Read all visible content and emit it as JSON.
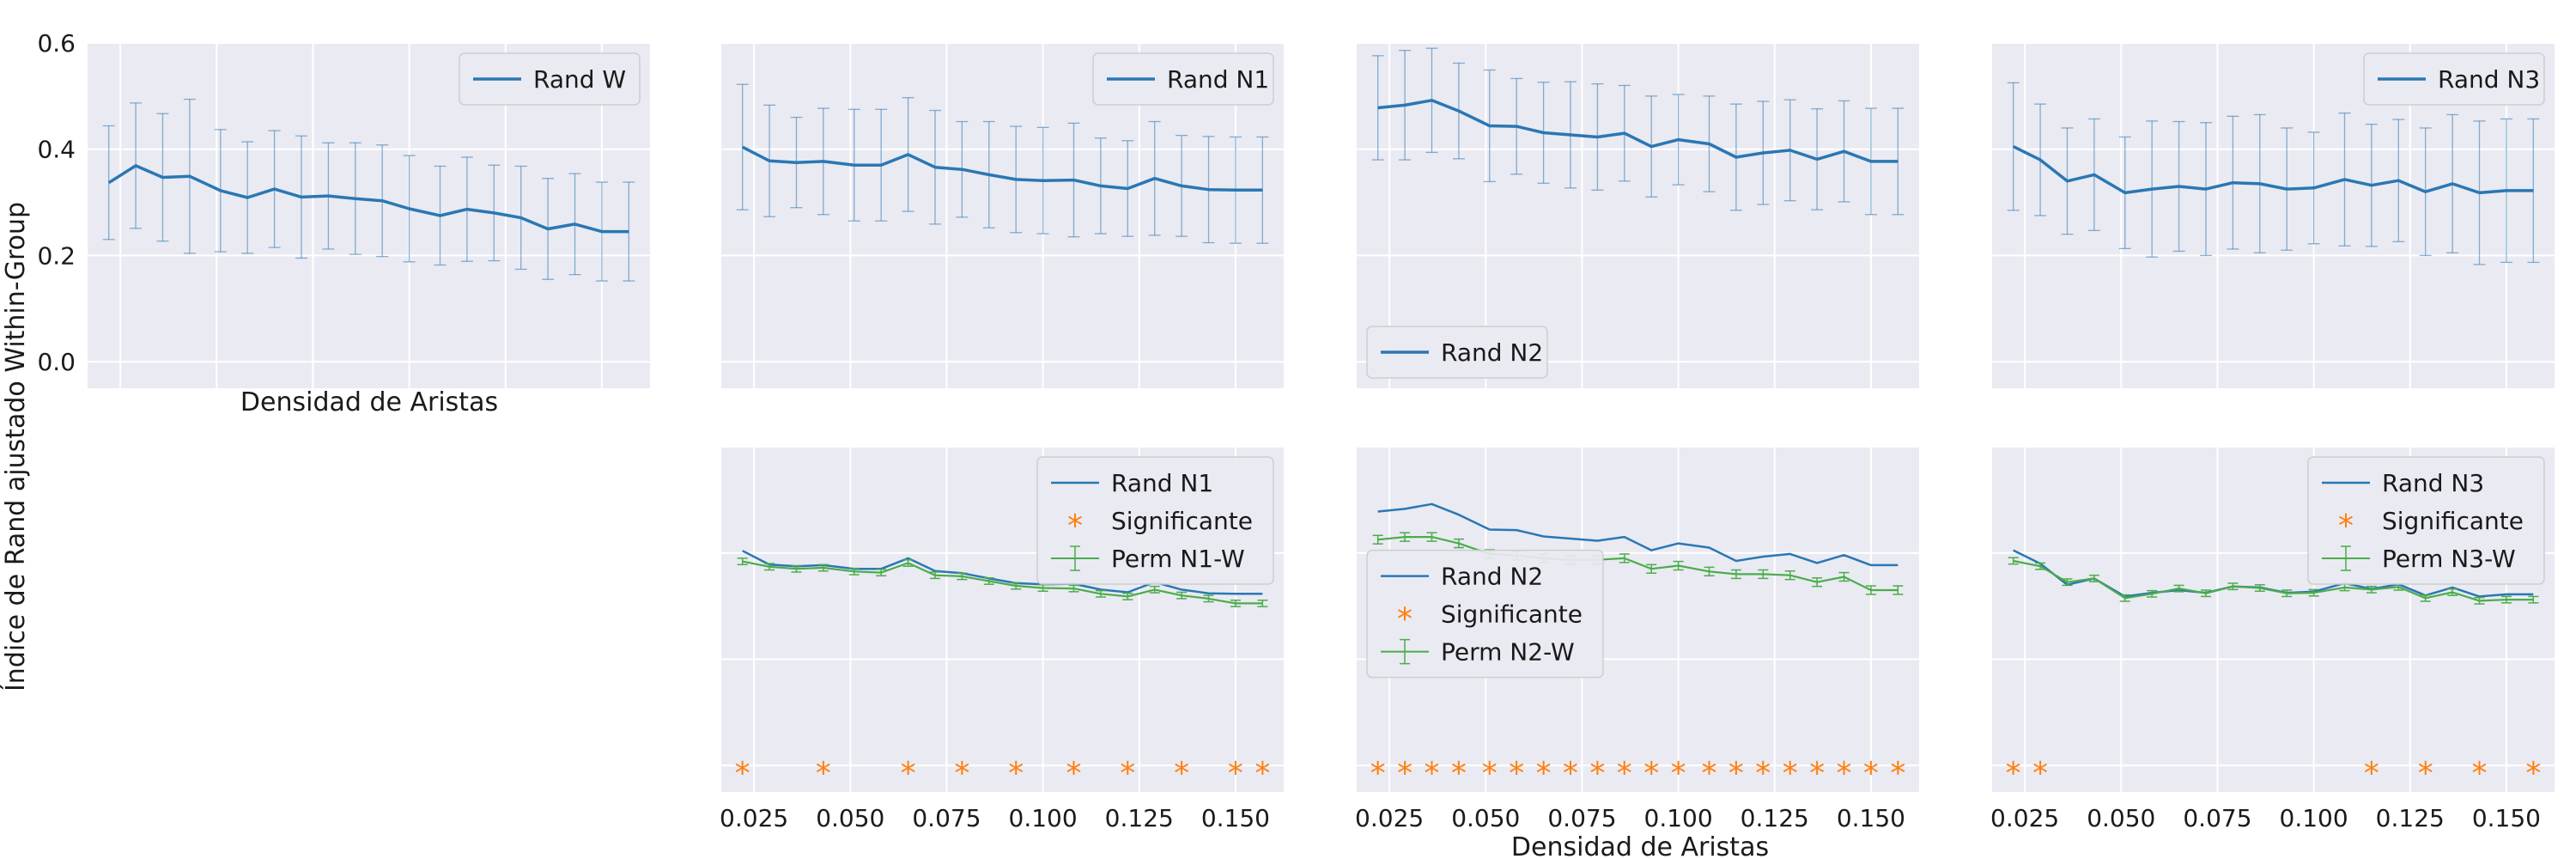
{
  "figure": {
    "ylabel": "Índice de Rand ajustado Within-Group",
    "xlabel_top": "Densidad de Aristas",
    "xlabel_bottom": "Densidad de Aristas"
  },
  "colors": {
    "blue": "#2a77b4",
    "orange": "#ff7f0e",
    "green": "#4bac4b",
    "panel_bg": "#eaeaf2",
    "grid": "#ffffff"
  },
  "chart_data": [
    {
      "id": "top-w",
      "type": "line",
      "row": "top",
      "col": 0,
      "legend": "top-right",
      "show_yticks": true,
      "ylim": [
        -0.05,
        0.6
      ],
      "yticks": [
        0.0,
        0.2,
        0.4,
        0.6
      ],
      "x": [
        0.022,
        0.029,
        0.036,
        0.043,
        0.051,
        0.058,
        0.065,
        0.072,
        0.079,
        0.086,
        0.093,
        0.1,
        0.108,
        0.115,
        0.122,
        0.129,
        0.136,
        0.143,
        0.15,
        0.157
      ],
      "series": [
        {
          "name": "Rand W",
          "color": "blue",
          "values": [
            0.337,
            0.369,
            0.347,
            0.349,
            0.322,
            0.309,
            0.325,
            0.31,
            0.312,
            0.307,
            0.303,
            0.288,
            0.275,
            0.287,
            0.28,
            0.271,
            0.25,
            0.259,
            0.245,
            0.245
          ],
          "err": [
            0.107,
            0.118,
            0.12,
            0.145,
            0.115,
            0.105,
            0.11,
            0.115,
            0.1,
            0.105,
            0.105,
            0.1,
            0.093,
            0.098,
            0.09,
            0.097,
            0.095,
            0.095,
            0.093,
            0.093
          ]
        }
      ]
    },
    {
      "id": "top-n1",
      "type": "line",
      "row": "top",
      "col": 1,
      "legend": "top-right",
      "show_yticks": false,
      "ylim": [
        -0.05,
        0.6
      ],
      "yticks": [
        0.0,
        0.2,
        0.4,
        0.6
      ],
      "x": [
        0.022,
        0.029,
        0.036,
        0.043,
        0.051,
        0.058,
        0.065,
        0.072,
        0.079,
        0.086,
        0.093,
        0.1,
        0.108,
        0.115,
        0.122,
        0.129,
        0.136,
        0.143,
        0.15,
        0.157
      ],
      "series": [
        {
          "name": "Rand N1",
          "color": "blue",
          "values": [
            0.404,
            0.378,
            0.375,
            0.377,
            0.37,
            0.37,
            0.39,
            0.366,
            0.362,
            0.352,
            0.343,
            0.341,
            0.342,
            0.331,
            0.326,
            0.345,
            0.331,
            0.324,
            0.323,
            0.323
          ],
          "err": [
            0.118,
            0.105,
            0.085,
            0.1,
            0.105,
            0.105,
            0.107,
            0.107,
            0.09,
            0.1,
            0.1,
            0.1,
            0.107,
            0.09,
            0.09,
            0.107,
            0.095,
            0.1,
            0.1,
            0.1
          ]
        }
      ]
    },
    {
      "id": "top-n2",
      "type": "line",
      "row": "top",
      "col": 2,
      "legend": "bottom-left",
      "show_yticks": false,
      "ylim": [
        -0.05,
        0.6
      ],
      "yticks": [
        0.0,
        0.2,
        0.4,
        0.6
      ],
      "x": [
        0.022,
        0.029,
        0.036,
        0.043,
        0.051,
        0.058,
        0.065,
        0.072,
        0.079,
        0.086,
        0.093,
        0.1,
        0.108,
        0.115,
        0.122,
        0.129,
        0.136,
        0.143,
        0.15,
        0.157
      ],
      "series": [
        {
          "name": "Rand N2",
          "color": "blue",
          "values": [
            0.478,
            0.483,
            0.492,
            0.472,
            0.444,
            0.443,
            0.431,
            0.427,
            0.423,
            0.43,
            0.405,
            0.418,
            0.41,
            0.385,
            0.393,
            0.398,
            0.381,
            0.396,
            0.377,
            0.377
          ],
          "err": [
            0.098,
            0.103,
            0.098,
            0.09,
            0.105,
            0.09,
            0.095,
            0.1,
            0.1,
            0.09,
            0.095,
            0.085,
            0.09,
            0.1,
            0.097,
            0.095,
            0.095,
            0.095,
            0.1,
            0.1
          ]
        }
      ]
    },
    {
      "id": "top-n3",
      "type": "line",
      "row": "top",
      "col": 3,
      "legend": "top-right",
      "show_yticks": false,
      "ylim": [
        -0.05,
        0.6
      ],
      "yticks": [
        0.0,
        0.2,
        0.4,
        0.6
      ],
      "x": [
        0.022,
        0.029,
        0.036,
        0.043,
        0.051,
        0.058,
        0.065,
        0.072,
        0.079,
        0.086,
        0.093,
        0.1,
        0.108,
        0.115,
        0.122,
        0.129,
        0.136,
        0.143,
        0.15,
        0.157
      ],
      "series": [
        {
          "name": "Rand N3",
          "color": "blue",
          "values": [
            0.405,
            0.38,
            0.34,
            0.352,
            0.318,
            0.325,
            0.33,
            0.325,
            0.337,
            0.335,
            0.325,
            0.327,
            0.343,
            0.332,
            0.341,
            0.32,
            0.335,
            0.318,
            0.322,
            0.322
          ],
          "err": [
            0.12,
            0.105,
            0.1,
            0.105,
            0.105,
            0.128,
            0.122,
            0.125,
            0.125,
            0.13,
            0.115,
            0.105,
            0.125,
            0.115,
            0.115,
            0.12,
            0.13,
            0.135,
            0.135,
            0.135
          ]
        }
      ]
    },
    {
      "id": "bottom-n1",
      "type": "line",
      "row": "bottom",
      "col": 1,
      "legend": "top-right",
      "show_yticks": false,
      "show_xticks": true,
      "ylim": [
        -0.05,
        0.6
      ],
      "yticks": [
        0.0,
        0.2,
        0.4,
        0.6
      ],
      "xticks": [
        0.025,
        0.05,
        0.075,
        0.1,
        0.125,
        0.15
      ],
      "xtick_labels": [
        "0.025",
        "0.050",
        "0.075",
        "0.100",
        "0.125",
        "0.150"
      ],
      "x": [
        0.022,
        0.029,
        0.036,
        0.043,
        0.051,
        0.058,
        0.065,
        0.072,
        0.079,
        0.086,
        0.093,
        0.1,
        0.108,
        0.115,
        0.122,
        0.129,
        0.136,
        0.143,
        0.15,
        0.157
      ],
      "series": [
        {
          "name": "Rand N1",
          "color": "blue",
          "values": [
            0.404,
            0.378,
            0.375,
            0.377,
            0.37,
            0.37,
            0.39,
            0.366,
            0.362,
            0.352,
            0.343,
            0.341,
            0.342,
            0.331,
            0.326,
            0.345,
            0.331,
            0.324,
            0.323,
            0.323
          ]
        },
        {
          "name": "Perm N1-W",
          "color": "green",
          "values": [
            0.384,
            0.374,
            0.37,
            0.372,
            0.365,
            0.363,
            0.381,
            0.358,
            0.356,
            0.347,
            0.338,
            0.334,
            0.333,
            0.323,
            0.318,
            0.331,
            0.32,
            0.314,
            0.305,
            0.305
          ],
          "err": [
            0.006,
            0.006,
            0.006,
            0.006,
            0.006,
            0.006,
            0.006,
            0.006,
            0.006,
            0.006,
            0.006,
            0.006,
            0.006,
            0.006,
            0.006,
            0.006,
            0.006,
            0.006,
            0.006,
            0.006
          ]
        }
      ],
      "significant_x": [
        0.022,
        0.043,
        0.065,
        0.079,
        0.093,
        0.108,
        0.122,
        0.136,
        0.15,
        0.157
      ],
      "significant_name": "Significante",
      "significant_color": "orange"
    },
    {
      "id": "bottom-n2",
      "type": "line",
      "row": "bottom",
      "col": 2,
      "legend": "center-left",
      "show_yticks": false,
      "show_xticks": true,
      "ylim": [
        -0.05,
        0.6
      ],
      "yticks": [
        0.0,
        0.2,
        0.4,
        0.6
      ],
      "xticks": [
        0.025,
        0.05,
        0.075,
        0.1,
        0.125,
        0.15
      ],
      "xtick_labels": [
        "0.025",
        "0.050",
        "0.075",
        "0.100",
        "0.125",
        "0.150"
      ],
      "x": [
        0.022,
        0.029,
        0.036,
        0.043,
        0.051,
        0.058,
        0.065,
        0.072,
        0.079,
        0.086,
        0.093,
        0.1,
        0.108,
        0.115,
        0.122,
        0.129,
        0.136,
        0.143,
        0.15,
        0.157
      ],
      "series": [
        {
          "name": "Rand N2",
          "color": "blue",
          "values": [
            0.478,
            0.483,
            0.492,
            0.472,
            0.444,
            0.443,
            0.431,
            0.427,
            0.423,
            0.43,
            0.405,
            0.418,
            0.41,
            0.385,
            0.393,
            0.398,
            0.381,
            0.396,
            0.377,
            0.377
          ]
        },
        {
          "name": "Perm N2-W",
          "color": "green",
          "values": [
            0.425,
            0.43,
            0.43,
            0.418,
            0.398,
            0.395,
            0.39,
            0.387,
            0.387,
            0.39,
            0.37,
            0.376,
            0.365,
            0.36,
            0.36,
            0.358,
            0.345,
            0.355,
            0.33,
            0.33
          ],
          "err": [
            0.008,
            0.008,
            0.008,
            0.008,
            0.008,
            0.008,
            0.008,
            0.008,
            0.008,
            0.008,
            0.008,
            0.008,
            0.008,
            0.008,
            0.008,
            0.008,
            0.008,
            0.008,
            0.008,
            0.008
          ]
        }
      ],
      "significant_x": [
        0.022,
        0.029,
        0.036,
        0.043,
        0.051,
        0.058,
        0.065,
        0.072,
        0.079,
        0.086,
        0.093,
        0.1,
        0.108,
        0.115,
        0.122,
        0.129,
        0.136,
        0.143,
        0.15,
        0.157
      ],
      "significant_name": "Significante",
      "significant_color": "orange"
    },
    {
      "id": "bottom-n3",
      "type": "line",
      "row": "bottom",
      "col": 3,
      "legend": "top-right",
      "show_yticks": false,
      "show_xticks": true,
      "ylim": [
        -0.05,
        0.6
      ],
      "yticks": [
        0.0,
        0.2,
        0.4,
        0.6
      ],
      "xticks": [
        0.025,
        0.05,
        0.075,
        0.1,
        0.125,
        0.15
      ],
      "xtick_labels": [
        "0.025",
        "0.050",
        "0.075",
        "0.100",
        "0.125",
        "0.150"
      ],
      "x": [
        0.022,
        0.029,
        0.036,
        0.043,
        0.051,
        0.058,
        0.065,
        0.072,
        0.079,
        0.086,
        0.093,
        0.1,
        0.108,
        0.115,
        0.122,
        0.129,
        0.136,
        0.143,
        0.15,
        0.157
      ],
      "series": [
        {
          "name": "Rand N3",
          "color": "blue",
          "values": [
            0.405,
            0.38,
            0.34,
            0.352,
            0.318,
            0.325,
            0.33,
            0.325,
            0.337,
            0.335,
            0.325,
            0.327,
            0.343,
            0.332,
            0.341,
            0.32,
            0.335,
            0.318,
            0.322,
            0.322
          ]
        },
        {
          "name": "Perm N3-W",
          "color": "green",
          "values": [
            0.385,
            0.375,
            0.345,
            0.352,
            0.315,
            0.323,
            0.333,
            0.324,
            0.337,
            0.334,
            0.324,
            0.325,
            0.335,
            0.331,
            0.336,
            0.315,
            0.326,
            0.31,
            0.312,
            0.312
          ],
          "err": [
            0.006,
            0.006,
            0.006,
            0.006,
            0.006,
            0.006,
            0.006,
            0.006,
            0.006,
            0.006,
            0.006,
            0.006,
            0.006,
            0.006,
            0.006,
            0.006,
            0.006,
            0.006,
            0.006,
            0.006
          ]
        }
      ],
      "significant_x": [
        0.022,
        0.029,
        0.115,
        0.129,
        0.143,
        0.157
      ],
      "significant_name": "Significante",
      "significant_color": "orange"
    }
  ]
}
